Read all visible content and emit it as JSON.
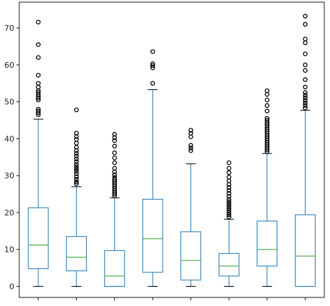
{
  "chart_data": {
    "type": "box",
    "title": "",
    "xlabel": "",
    "ylabel": "",
    "categories": [
      "",
      "",
      "",
      "",
      "",
      "",
      "",
      ""
    ],
    "ylim": [
      -3,
      77
    ],
    "yticks": [
      0,
      10,
      20,
      30,
      40,
      50,
      60,
      70
    ],
    "grid": false,
    "legend": "none",
    "colors": {
      "box": "#1f77b4",
      "median": "#2ca02c",
      "whisker": "#1f77b4",
      "cap": "#000000",
      "flier": "#000000"
    },
    "boxes": [
      {
        "min": 0,
        "q1": 4.8,
        "median": 11.2,
        "q3": 21.3,
        "max": 45.3,
        "fliers": [
          46.5,
          47,
          47.5,
          48,
          50.5,
          51,
          51.5,
          52,
          52.5,
          53,
          54,
          55,
          57.2,
          62,
          65.5,
          71.6
        ]
      },
      {
        "min": 0,
        "q1": 4.2,
        "median": 7.9,
        "q3": 13.5,
        "max": 27.0,
        "fliers": [
          27.8,
          28.3,
          29,
          29.7,
          30.5,
          31.2,
          31.8,
          32.4,
          33,
          33.8,
          34.5,
          35.3,
          36,
          36.8,
          37.7,
          38.8,
          39.8,
          40.6,
          41.5,
          47.8
        ]
      },
      {
        "min": 0,
        "q1": 0,
        "median": 2.8,
        "q3": 9.7,
        "max": 24.0,
        "fliers": [
          24.5,
          25,
          25.5,
          26,
          26.5,
          27,
          27.5,
          28,
          28.5,
          29,
          29.5,
          30.2,
          31,
          32,
          33.5,
          34.8,
          36.2,
          38,
          39.5,
          40.3,
          41.2
        ]
      },
      {
        "min": 0,
        "q1": 3.8,
        "median": 12.9,
        "q3": 23.6,
        "max": 53.3,
        "fliers": [
          55,
          59.2,
          59.8,
          60.3,
          63.6
        ]
      },
      {
        "min": 0,
        "q1": 1.7,
        "median": 7.0,
        "q3": 14.8,
        "max": 33.2,
        "fliers": [
          36.8,
          37.5,
          38.2,
          40.5,
          41.5,
          42.3
        ]
      },
      {
        "min": 0,
        "q1": 2.8,
        "median": 5.5,
        "q3": 8.9,
        "max": 18.2,
        "fliers": [
          18.8,
          19.4,
          20,
          20.6,
          21.2,
          21.8,
          22.4,
          23,
          23.6,
          24.4,
          25.2,
          26,
          26.8,
          27.6,
          28.6,
          29.6,
          30.8,
          32,
          33.5
        ]
      },
      {
        "min": 0,
        "q1": 5.5,
        "median": 10.0,
        "q3": 17.7,
        "max": 36.0,
        "fliers": [
          36.5,
          37,
          37.5,
          38,
          38.5,
          39,
          39.5,
          40,
          40.5,
          41,
          41.5,
          42,
          42.5,
          43,
          43.5,
          44,
          44.5,
          45,
          45.5,
          47.5,
          49,
          50.5,
          52,
          53
        ]
      },
      {
        "min": 0,
        "q1": 0,
        "median": 8.2,
        "q3": 19.4,
        "max": 47.7,
        "fliers": [
          48.3,
          49,
          49.7,
          50.4,
          51.1,
          51.8,
          52.5,
          54,
          56,
          58.5,
          60,
          63,
          66,
          67,
          71,
          73.2
        ]
      }
    ]
  }
}
